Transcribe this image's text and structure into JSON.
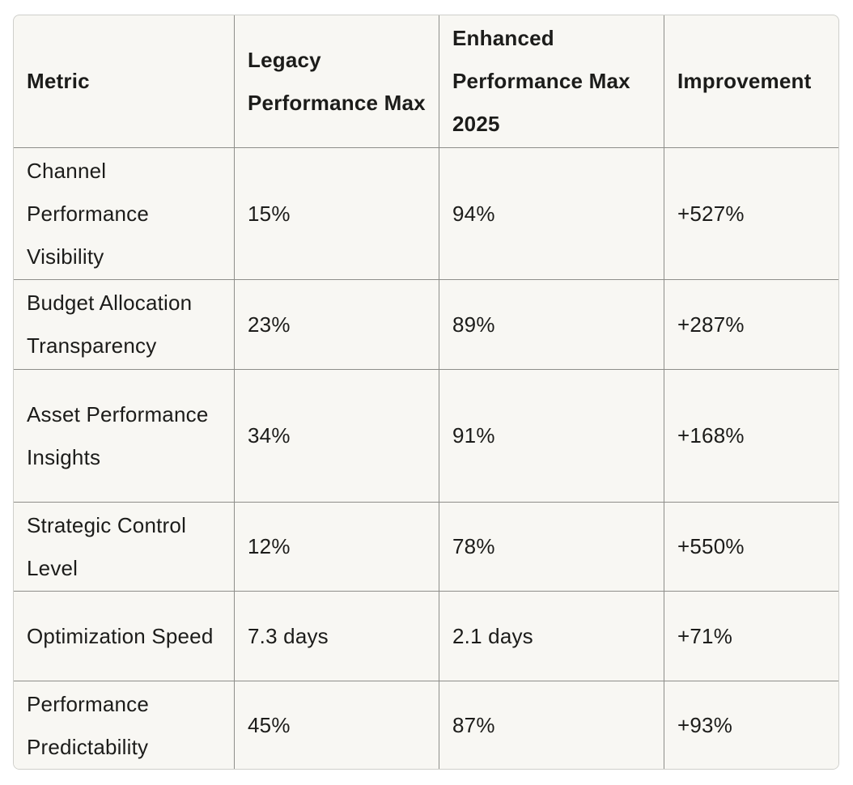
{
  "table": {
    "headers": [
      "Metric",
      "Legacy Performance Max",
      "Enhanced Performance Max 2025",
      "Improvement"
    ],
    "rows": [
      {
        "metric": "Channel Performance Visibility",
        "legacy": "15%",
        "enhanced": "94%",
        "improvement": "+527%"
      },
      {
        "metric": "Budget Allocation Transparency",
        "legacy": "23%",
        "enhanced": "89%",
        "improvement": "+287%"
      },
      {
        "metric": "Asset Performance Insights",
        "legacy": "34%",
        "enhanced": "91%",
        "improvement": "+168%"
      },
      {
        "metric": "Strategic Control Level",
        "legacy": "12%",
        "enhanced": "78%",
        "improvement": "+550%"
      },
      {
        "metric": "Optimization Speed",
        "legacy": "7.3 days",
        "enhanced": "2.1 days",
        "improvement": "+71%"
      },
      {
        "metric": "Performance Predictability",
        "legacy": "45%",
        "enhanced": "87%",
        "improvement": "+93%"
      }
    ]
  }
}
